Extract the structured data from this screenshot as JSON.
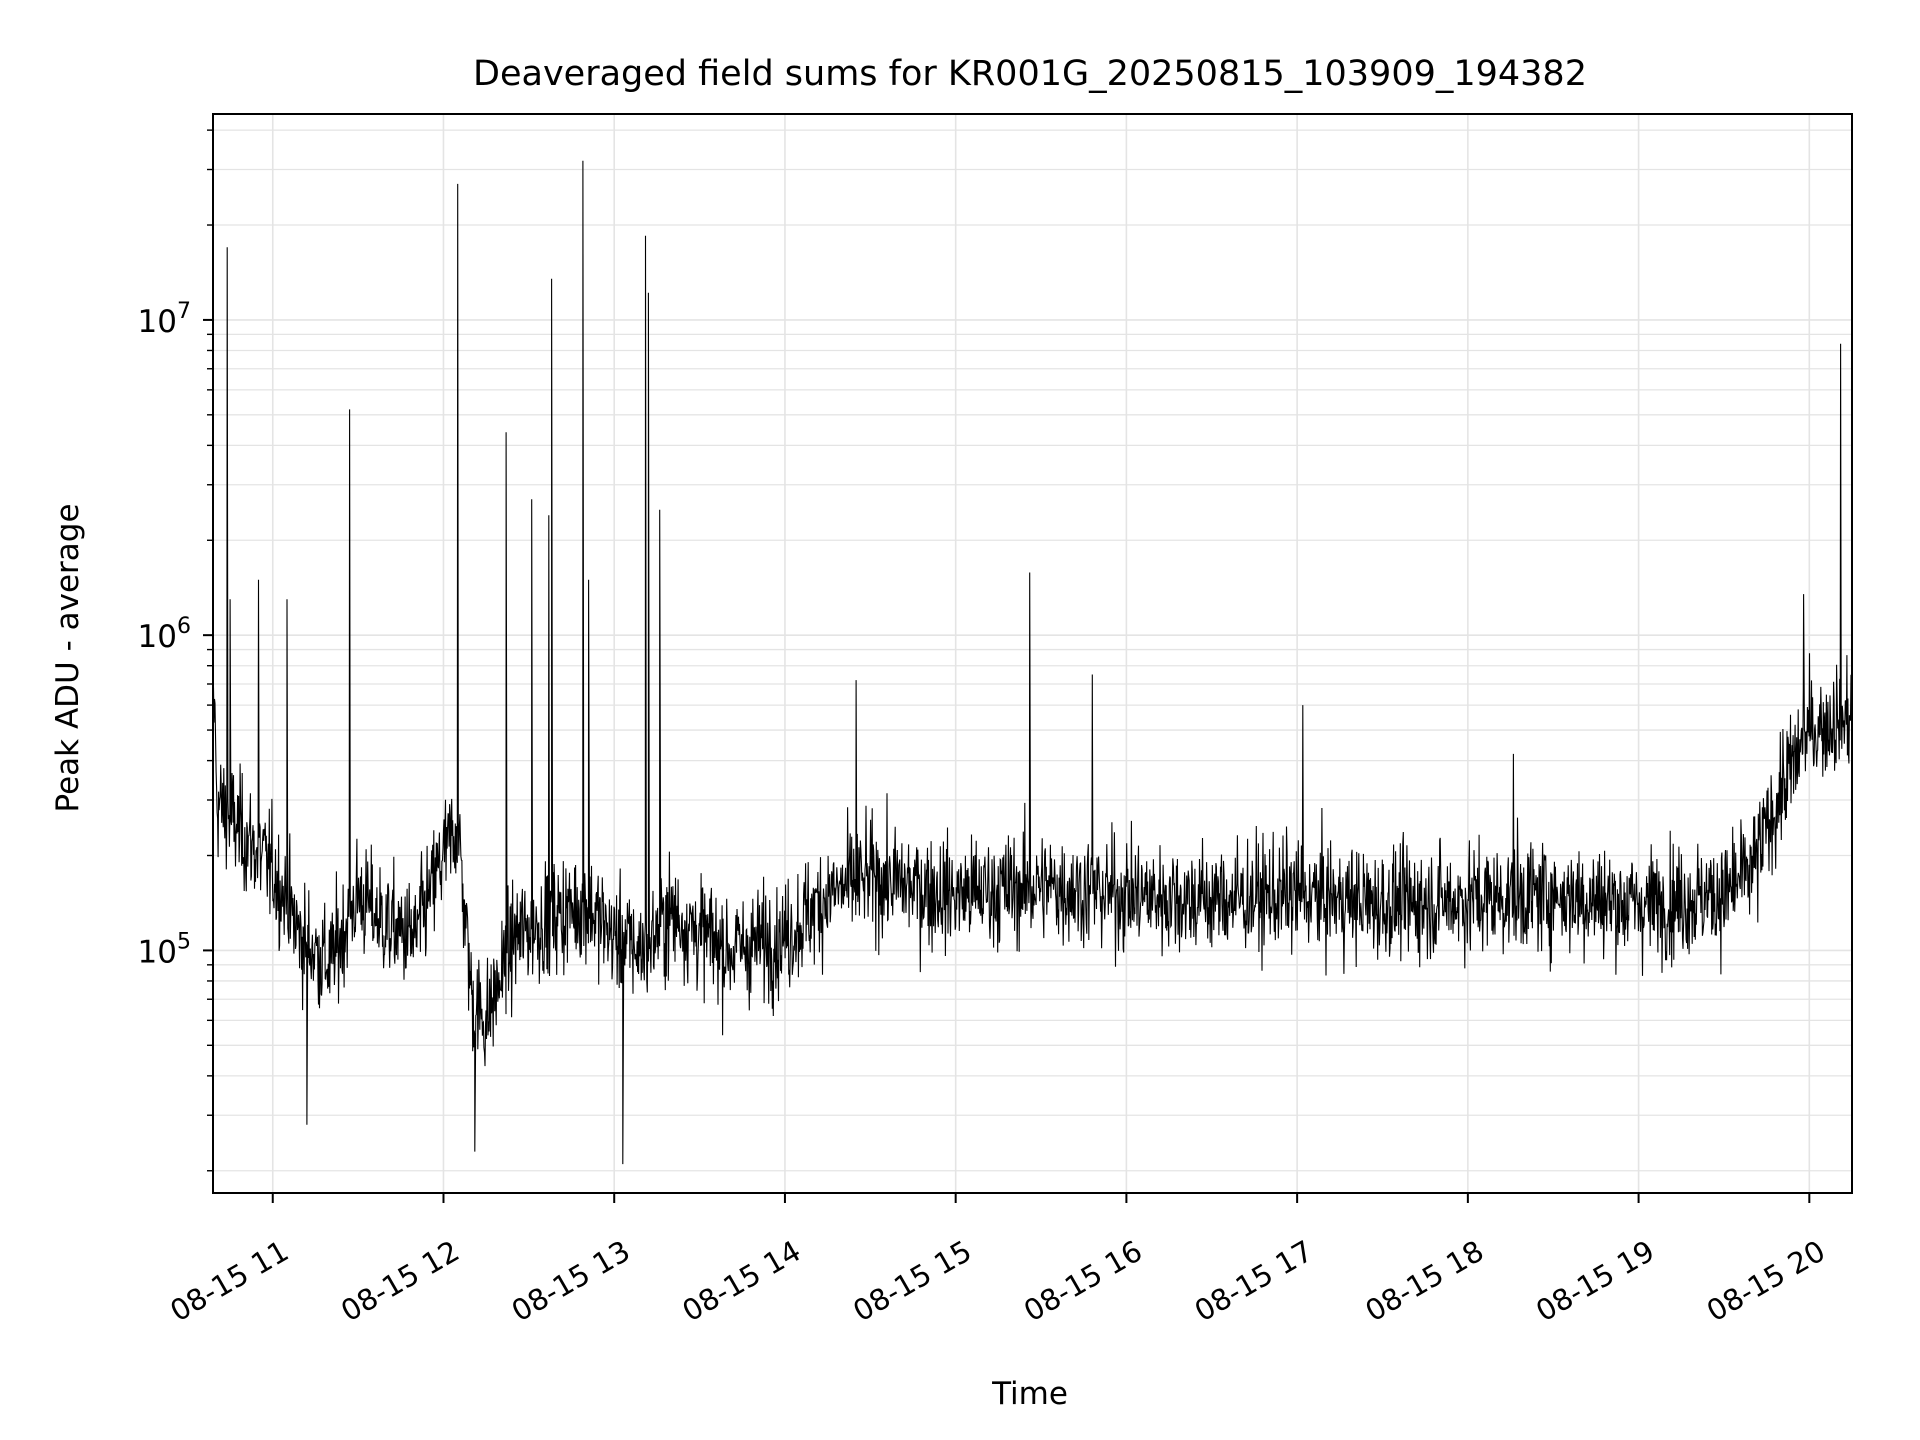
{
  "chart_data": {
    "type": "line",
    "title": "Deaveraged field sums for KR001G_20250815_103909_194382",
    "xlabel": "Time",
    "ylabel": "Peak ADU - average",
    "y_scale": "log",
    "ylim": [
      17000,
      45000000
    ],
    "xlim": [
      "08-15 10:39",
      "08-15 20:15"
    ],
    "grid": true,
    "x_ticks": [
      "08-15 11",
      "08-15 12",
      "08-15 13",
      "08-15 14",
      "08-15 15",
      "08-15 16",
      "08-15 17",
      "08-15 18",
      "08-15 19",
      "08-15 20"
    ],
    "y_ticks": [
      {
        "value": 100000,
        "base": "10",
        "exp": "5"
      },
      {
        "value": 1000000,
        "base": "10",
        "exp": "6"
      },
      {
        "value": 10000000,
        "base": "10",
        "exp": "7"
      }
    ],
    "line_color": "#000000",
    "series": [
      {
        "baseline": [
          [
            "08-15 10:40",
            300000
          ],
          [
            "08-15 10:50",
            230000
          ],
          [
            "08-15 11:00",
            180000
          ],
          [
            "08-15 11:10",
            110000
          ],
          [
            "08-15 11:20",
            90000
          ],
          [
            "08-15 11:30",
            150000
          ],
          [
            "08-15 11:40",
            120000
          ],
          [
            "08-15 11:50",
            110000
          ],
          [
            "08-15 12:00",
            200000
          ],
          [
            "08-15 12:05",
            250000
          ],
          [
            "08-15 12:10",
            70000
          ],
          [
            "08-15 12:15",
            60000
          ],
          [
            "08-15 12:25",
            110000
          ],
          [
            "08-15 12:40",
            130000
          ],
          [
            "08-15 12:50",
            140000
          ],
          [
            "08-15 13:00",
            110000
          ],
          [
            "08-15 13:10",
            100000
          ],
          [
            "08-15 13:20",
            130000
          ],
          [
            "08-15 13:40",
            100000
          ],
          [
            "08-15 14:00",
            110000
          ],
          [
            "08-15 14:15",
            150000
          ],
          [
            "08-15 14:30",
            170000
          ],
          [
            "08-15 15:00",
            150000
          ],
          [
            "08-15 15:30",
            160000
          ],
          [
            "08-15 16:00",
            150000
          ],
          [
            "08-15 16:30",
            145000
          ],
          [
            "08-15 17:00",
            150000
          ],
          [
            "08-15 17:30",
            140000
          ],
          [
            "08-15 18:00",
            145000
          ],
          [
            "08-15 18:30",
            150000
          ],
          [
            "08-15 19:00",
            140000
          ],
          [
            "08-15 19:30",
            150000
          ],
          [
            "08-15 19:40",
            180000
          ],
          [
            "08-15 19:50",
            320000
          ],
          [
            "08-15 20:00",
            500000
          ],
          [
            "08-15 20:15",
            560000
          ]
        ],
        "spikes": [
          [
            "08-15 10:44",
            17000000
          ],
          [
            "08-15 10:45",
            1300000
          ],
          [
            "08-15 10:55",
            1500000
          ],
          [
            "08-15 11:05",
            1300000
          ],
          [
            "08-15 11:27",
            5200000
          ],
          [
            "08-15 12:05",
            27000000
          ],
          [
            "08-15 12:22",
            4400000
          ],
          [
            "08-15 12:31",
            2700000
          ],
          [
            "08-15 12:38",
            13500000
          ],
          [
            "08-15 12:37",
            2400000
          ],
          [
            "08-15 12:49",
            32000000
          ],
          [
            "08-15 12:51",
            1500000
          ],
          [
            "08-15 13:11",
            18500000
          ],
          [
            "08-15 13:12",
            12200000
          ],
          [
            "08-15 13:16",
            2500000
          ],
          [
            "08-15 13:03",
            21000
          ],
          [
            "08-15 12:11",
            23000
          ],
          [
            "08-15 11:12",
            28000
          ],
          [
            "08-15 14:25",
            720000
          ],
          [
            "08-15 15:26",
            1580000
          ],
          [
            "08-15 15:48",
            750000
          ],
          [
            "08-15 17:02",
            600000
          ],
          [
            "08-15 18:16",
            420000
          ],
          [
            "08-15 20:11",
            8400000
          ],
          [
            "08-15 19:58",
            1350000
          ]
        ]
      }
    ]
  }
}
